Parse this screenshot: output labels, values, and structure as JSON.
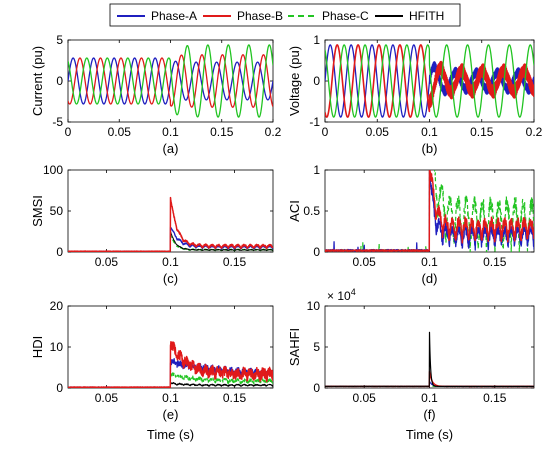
{
  "legend": [
    {
      "label": "Phase-A",
      "color": "#1f1fbf",
      "dash": false
    },
    {
      "label": "Phase-B",
      "color": "#e01a1a",
      "dash": false
    },
    {
      "label": "Phase-C",
      "color": "#22c422",
      "dash": true
    },
    {
      "label": "HFITH",
      "color": "#000000",
      "dash": false
    }
  ],
  "chart_data": [
    {
      "type": "line",
      "panel_label": "(a)",
      "ylabel": "Current (pu)",
      "xlabel": "",
      "xlim": [
        0,
        0.2
      ],
      "ylim": [
        -5,
        5
      ],
      "xticks": [
        "0",
        "0.05",
        "0.1",
        "0.15",
        "0.2"
      ],
      "yticks": [
        "-5",
        "0",
        "5"
      ],
      "series_desc": {
        "frequency_hz": 50,
        "phases": [
          "Phase-A",
          "Phase-B",
          "Phase-C"
        ],
        "amplitude_pre": 2.8,
        "amplitude_post": {
          "Phase-A": 2.3,
          "Phase-B": 3.2,
          "Phase-C": 4.4
        },
        "event_time": 0.1
      }
    },
    {
      "type": "line",
      "panel_label": "(b)",
      "ylabel": "Voltage (pu)",
      "xlabel": "",
      "xlim": [
        0,
        0.2
      ],
      "ylim": [
        -1,
        1
      ],
      "xticks": [
        "0",
        "0.05",
        "0.1",
        "0.15",
        "0.2"
      ],
      "yticks": [
        "-1",
        "0",
        "1"
      ],
      "series_desc": {
        "frequency_hz": 50,
        "phases": [
          "Phase-A",
          "Phase-B",
          "Phase-C"
        ],
        "amplitude_pre": 0.88,
        "amplitude_post": {
          "Phase-A": 0.2,
          "Phase-B": 0.25,
          "Phase-C": 0.88
        },
        "event_time": 0.1
      }
    },
    {
      "type": "line",
      "panel_label": "(c)",
      "ylabel": "SMSI",
      "xlabel": "",
      "xlim": [
        0.02,
        0.18
      ],
      "ylim": [
        0,
        100
      ],
      "xticks": [
        "0.05",
        "0.1",
        "0.15"
      ],
      "yticks": [
        "0",
        "50",
        "100"
      ],
      "peaks": {
        "Phase-B": 66,
        "Phase-A": 30,
        "Phase-C": 20,
        "HFITH": 25
      },
      "tail": {
        "Phase-B": 5,
        "Phase-A": 4,
        "Phase-C": 2,
        "HFITH": 2
      },
      "event_time": 0.1
    },
    {
      "type": "line",
      "panel_label": "(d)",
      "ylabel": "ACI",
      "xlabel": "",
      "xlim": [
        0.02,
        0.18
      ],
      "ylim": [
        0,
        1
      ],
      "xticks": [
        "0.05",
        "0.1",
        "0.15"
      ],
      "yticks": [
        "0",
        "0.5",
        "1"
      ],
      "peaks": {
        "Phase-B": 1.0,
        "Phase-A": 0.95,
        "Phase-C": 0.95
      },
      "oscillation_hz": 100,
      "tail_range": {
        "Phase-B": [
          0.12,
          0.35
        ],
        "Phase-A": [
          0.05,
          0.28
        ]
      },
      "event_time": 0.1
    },
    {
      "type": "line",
      "panel_label": "(e)",
      "ylabel": "HDI",
      "xlabel": "Time (s)",
      "xlim": [
        0.02,
        0.18
      ],
      "ylim": [
        0,
        20
      ],
      "xticks": [
        "0.05",
        "0.1",
        "0.15"
      ],
      "yticks": [
        "0",
        "10",
        "20"
      ],
      "peaks": {
        "Phase-B": 10.3,
        "Phase-A": 6,
        "Phase-C": 3,
        "HFITH": 1
      },
      "tail": {
        "Phase-B": 3.8,
        "Phase-A": 2.6,
        "Phase-C": 1.2
      },
      "event_time": 0.1
    },
    {
      "type": "line",
      "panel_label": "(f)",
      "ylabel": "SAHFI",
      "xlabel": "Time (s)",
      "xlim": [
        0.02,
        0.18
      ],
      "ylim": [
        0,
        100000
      ],
      "xticks": [
        "0.05",
        "0.1",
        "0.15"
      ],
      "yticks": [
        "0",
        "5",
        "10"
      ],
      "yexponent": "4",
      "peaks": {
        "HFITH": 68000,
        "Phase-B": 20000
      },
      "baseline": 2000,
      "event_time": 0.1
    }
  ]
}
